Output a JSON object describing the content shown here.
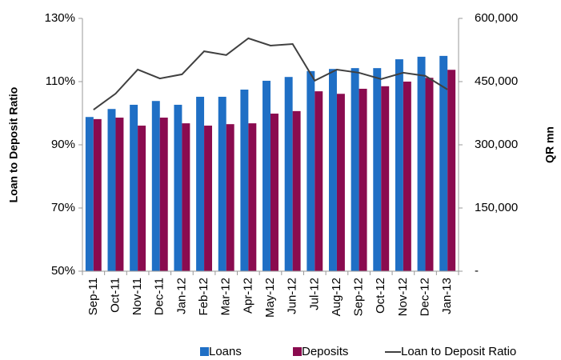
{
  "chart_data": {
    "type": "bar_line",
    "categories": [
      "Sep-11",
      "Oct-11",
      "Nov-11",
      "Dec-11",
      "Jan-12",
      "Feb-12",
      "Mar-12",
      "Apr-12",
      "May-12",
      "Jun-12",
      "Jul-12",
      "Aug-12",
      "Sep-12",
      "Oct-12",
      "Nov-12",
      "Dec-12",
      "Jan-13"
    ],
    "y_label": "Loan to Deposit Ratio",
    "y2_label": "QR mn",
    "ylim": [
      50,
      130
    ],
    "yticks": [
      {
        "value": 50,
        "label": "50%"
      },
      {
        "value": 70,
        "label": "70%"
      },
      {
        "value": 90,
        "label": "90%"
      },
      {
        "value": 110,
        "label": "110%"
      },
      {
        "value": 130,
        "label": "130%"
      }
    ],
    "y2lim": [
      0,
      600000
    ],
    "y2ticks": [
      {
        "value": 0,
        "label": "-"
      },
      {
        "value": 150000,
        "label": "150,000"
      },
      {
        "value": 300000,
        "label": "300,000"
      },
      {
        "value": 450000,
        "label": "450,000"
      },
      {
        "value": 600000,
        "label": "600,000"
      }
    ],
    "series": [
      {
        "name": "Loans",
        "type": "bar",
        "axis": "y2",
        "color": "#1f6fc5",
        "values": [
          366000,
          385000,
          395000,
          404000,
          395000,
          414000,
          414000,
          431000,
          452000,
          461000,
          475000,
          480000,
          482000,
          482000,
          503000,
          509000,
          511000
        ]
      },
      {
        "name": "Deposits",
        "type": "bar",
        "axis": "y2",
        "color": "#8a0b4f",
        "values": [
          361000,
          364500,
          345500,
          364500,
          351000,
          345500,
          349000,
          351000,
          374000,
          380000,
          427000,
          421000,
          433000,
          439000,
          450000,
          459000,
          478000
        ]
      },
      {
        "name": "Loan to Deposit Ratio",
        "type": "line",
        "axis": "y",
        "color": "#404040",
        "values": [
          101.1,
          106.2,
          113.8,
          111.0,
          112.3,
          119.6,
          118.4,
          123.7,
          121.4,
          121.9,
          110.3,
          113.8,
          112.8,
          110.8,
          112.8,
          111.8,
          107.5
        ]
      }
    ],
    "legend": "bottom"
  }
}
